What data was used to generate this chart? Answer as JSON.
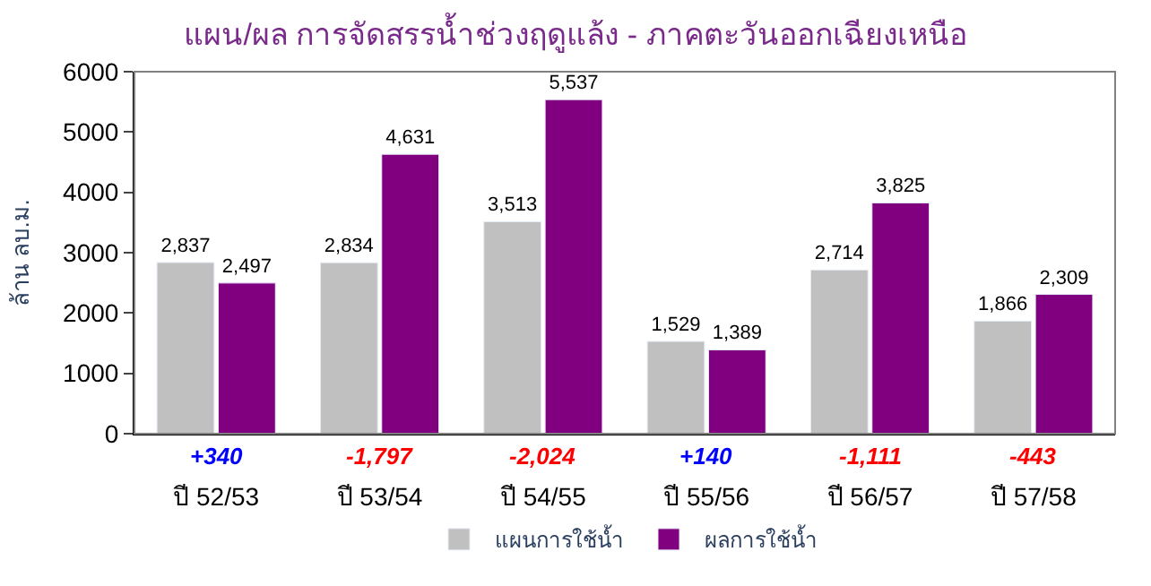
{
  "chart_data": {
    "type": "bar",
    "title": "แผน/ผล การจัดสรรน้ำช่วงฤดูแล้ง - ภาคตะวันออกเฉียงเหนือ",
    "ylabel": "ล้าน ลบ.ม.",
    "categories": [
      "ปี 52/53",
      "ปี 53/54",
      "ปี 54/55",
      "ปี 55/56",
      "ปี 56/57",
      "ปี 57/58"
    ],
    "series": [
      {
        "name": "แผนการใช้น้ำ",
        "color": "#c0c0c0",
        "values": [
          2837,
          2834,
          3513,
          1529,
          2714,
          1866
        ],
        "value_labels": [
          "2,837",
          "2,834",
          "3,513",
          "1,529",
          "2,714",
          "1,866"
        ]
      },
      {
        "name": "ผลการใช้น้ำ",
        "color": "#800080",
        "values": [
          2497,
          4631,
          5537,
          1389,
          3825,
          2309
        ],
        "value_labels": [
          "2,497",
          "4,631",
          "5,537",
          "1,389",
          "3,825",
          "2,309"
        ]
      }
    ],
    "annotations": [
      "+340",
      "-1,797",
      "-2,024",
      "+140",
      "-1,111",
      "-443"
    ],
    "ylim": [
      0,
      6000
    ],
    "yticks": [
      0,
      1000,
      2000,
      3000,
      4000,
      5000,
      6000
    ],
    "legend": "bottom"
  }
}
